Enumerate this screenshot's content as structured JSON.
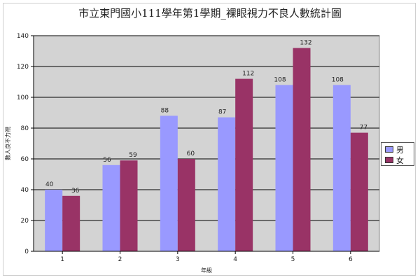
{
  "chart_data": {
    "type": "bar",
    "title": "市立東門國小111學年第1學期_裸眼視力不良人數統計圖",
    "xlabel": "年級",
    "ylabel": "數人良不力視",
    "categories": [
      "1",
      "2",
      "3",
      "4",
      "5",
      "6"
    ],
    "series": [
      {
        "name": "男",
        "color": "#9999ff",
        "values": [
          40,
          56,
          88,
          87,
          108,
          108
        ]
      },
      {
        "name": "女",
        "color": "#993366",
        "values": [
          36,
          59,
          60,
          112,
          132,
          77
        ]
      }
    ],
    "ylim": [
      0,
      140
    ],
    "yticks": [
      0,
      20,
      40,
      60,
      80,
      100,
      120,
      140
    ],
    "grid": true,
    "plot_background": "#d3d3d3",
    "legend": "right"
  }
}
